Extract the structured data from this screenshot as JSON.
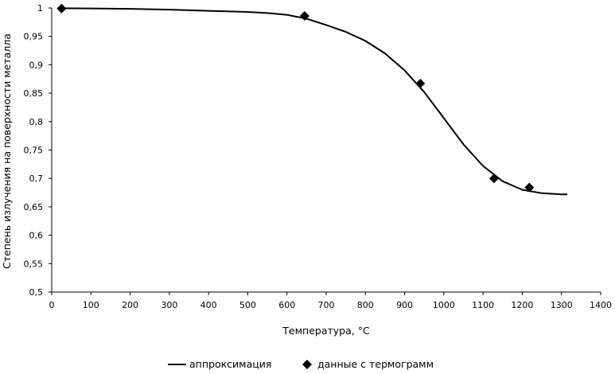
{
  "chart_data": {
    "type": "scatter",
    "xlabel": "Температура, °С",
    "ylabel": "Степень излучения на поверхности металла",
    "xlim": [
      0,
      1400
    ],
    "ylim": [
      0.5,
      1
    ],
    "xticks": [
      0,
      100,
      200,
      300,
      400,
      500,
      600,
      700,
      800,
      900,
      1000,
      1100,
      1200,
      1300,
      1400
    ],
    "yticks": [
      "0,5",
      "0,55",
      "0,6",
      "0,65",
      "0,7",
      "0,75",
      "0,8",
      "0,85",
      "0,9",
      "0,95",
      "1"
    ],
    "ytick_values": [
      0.5,
      0.55,
      0.6,
      0.65,
      0.7,
      0.75,
      0.8,
      0.85,
      0.9,
      0.95,
      1.0
    ],
    "grid": false,
    "legend_position": "bottom",
    "series": [
      {
        "name": "аппроксимация",
        "kind": "line",
        "color": "#000000",
        "x": [
          25,
          100,
          200,
          300,
          400,
          500,
          550,
          600,
          650,
          700,
          750,
          800,
          850,
          900,
          950,
          1000,
          1050,
          1100,
          1150,
          1200,
          1250,
          1300,
          1315
        ],
        "y": [
          0.9995,
          0.9992,
          0.9985,
          0.997,
          0.995,
          0.993,
          0.991,
          0.988,
          0.981,
          0.97,
          0.958,
          0.942,
          0.92,
          0.89,
          0.852,
          0.806,
          0.76,
          0.722,
          0.695,
          0.68,
          0.674,
          0.672,
          0.672
        ]
      },
      {
        "name": "данные с термограмм",
        "kind": "scatter",
        "marker": "diamond",
        "color": "#000000",
        "x": [
          25,
          645,
          940,
          1128,
          1218
        ],
        "y": [
          0.999,
          0.986,
          0.867,
          0.7,
          0.684
        ]
      }
    ]
  }
}
